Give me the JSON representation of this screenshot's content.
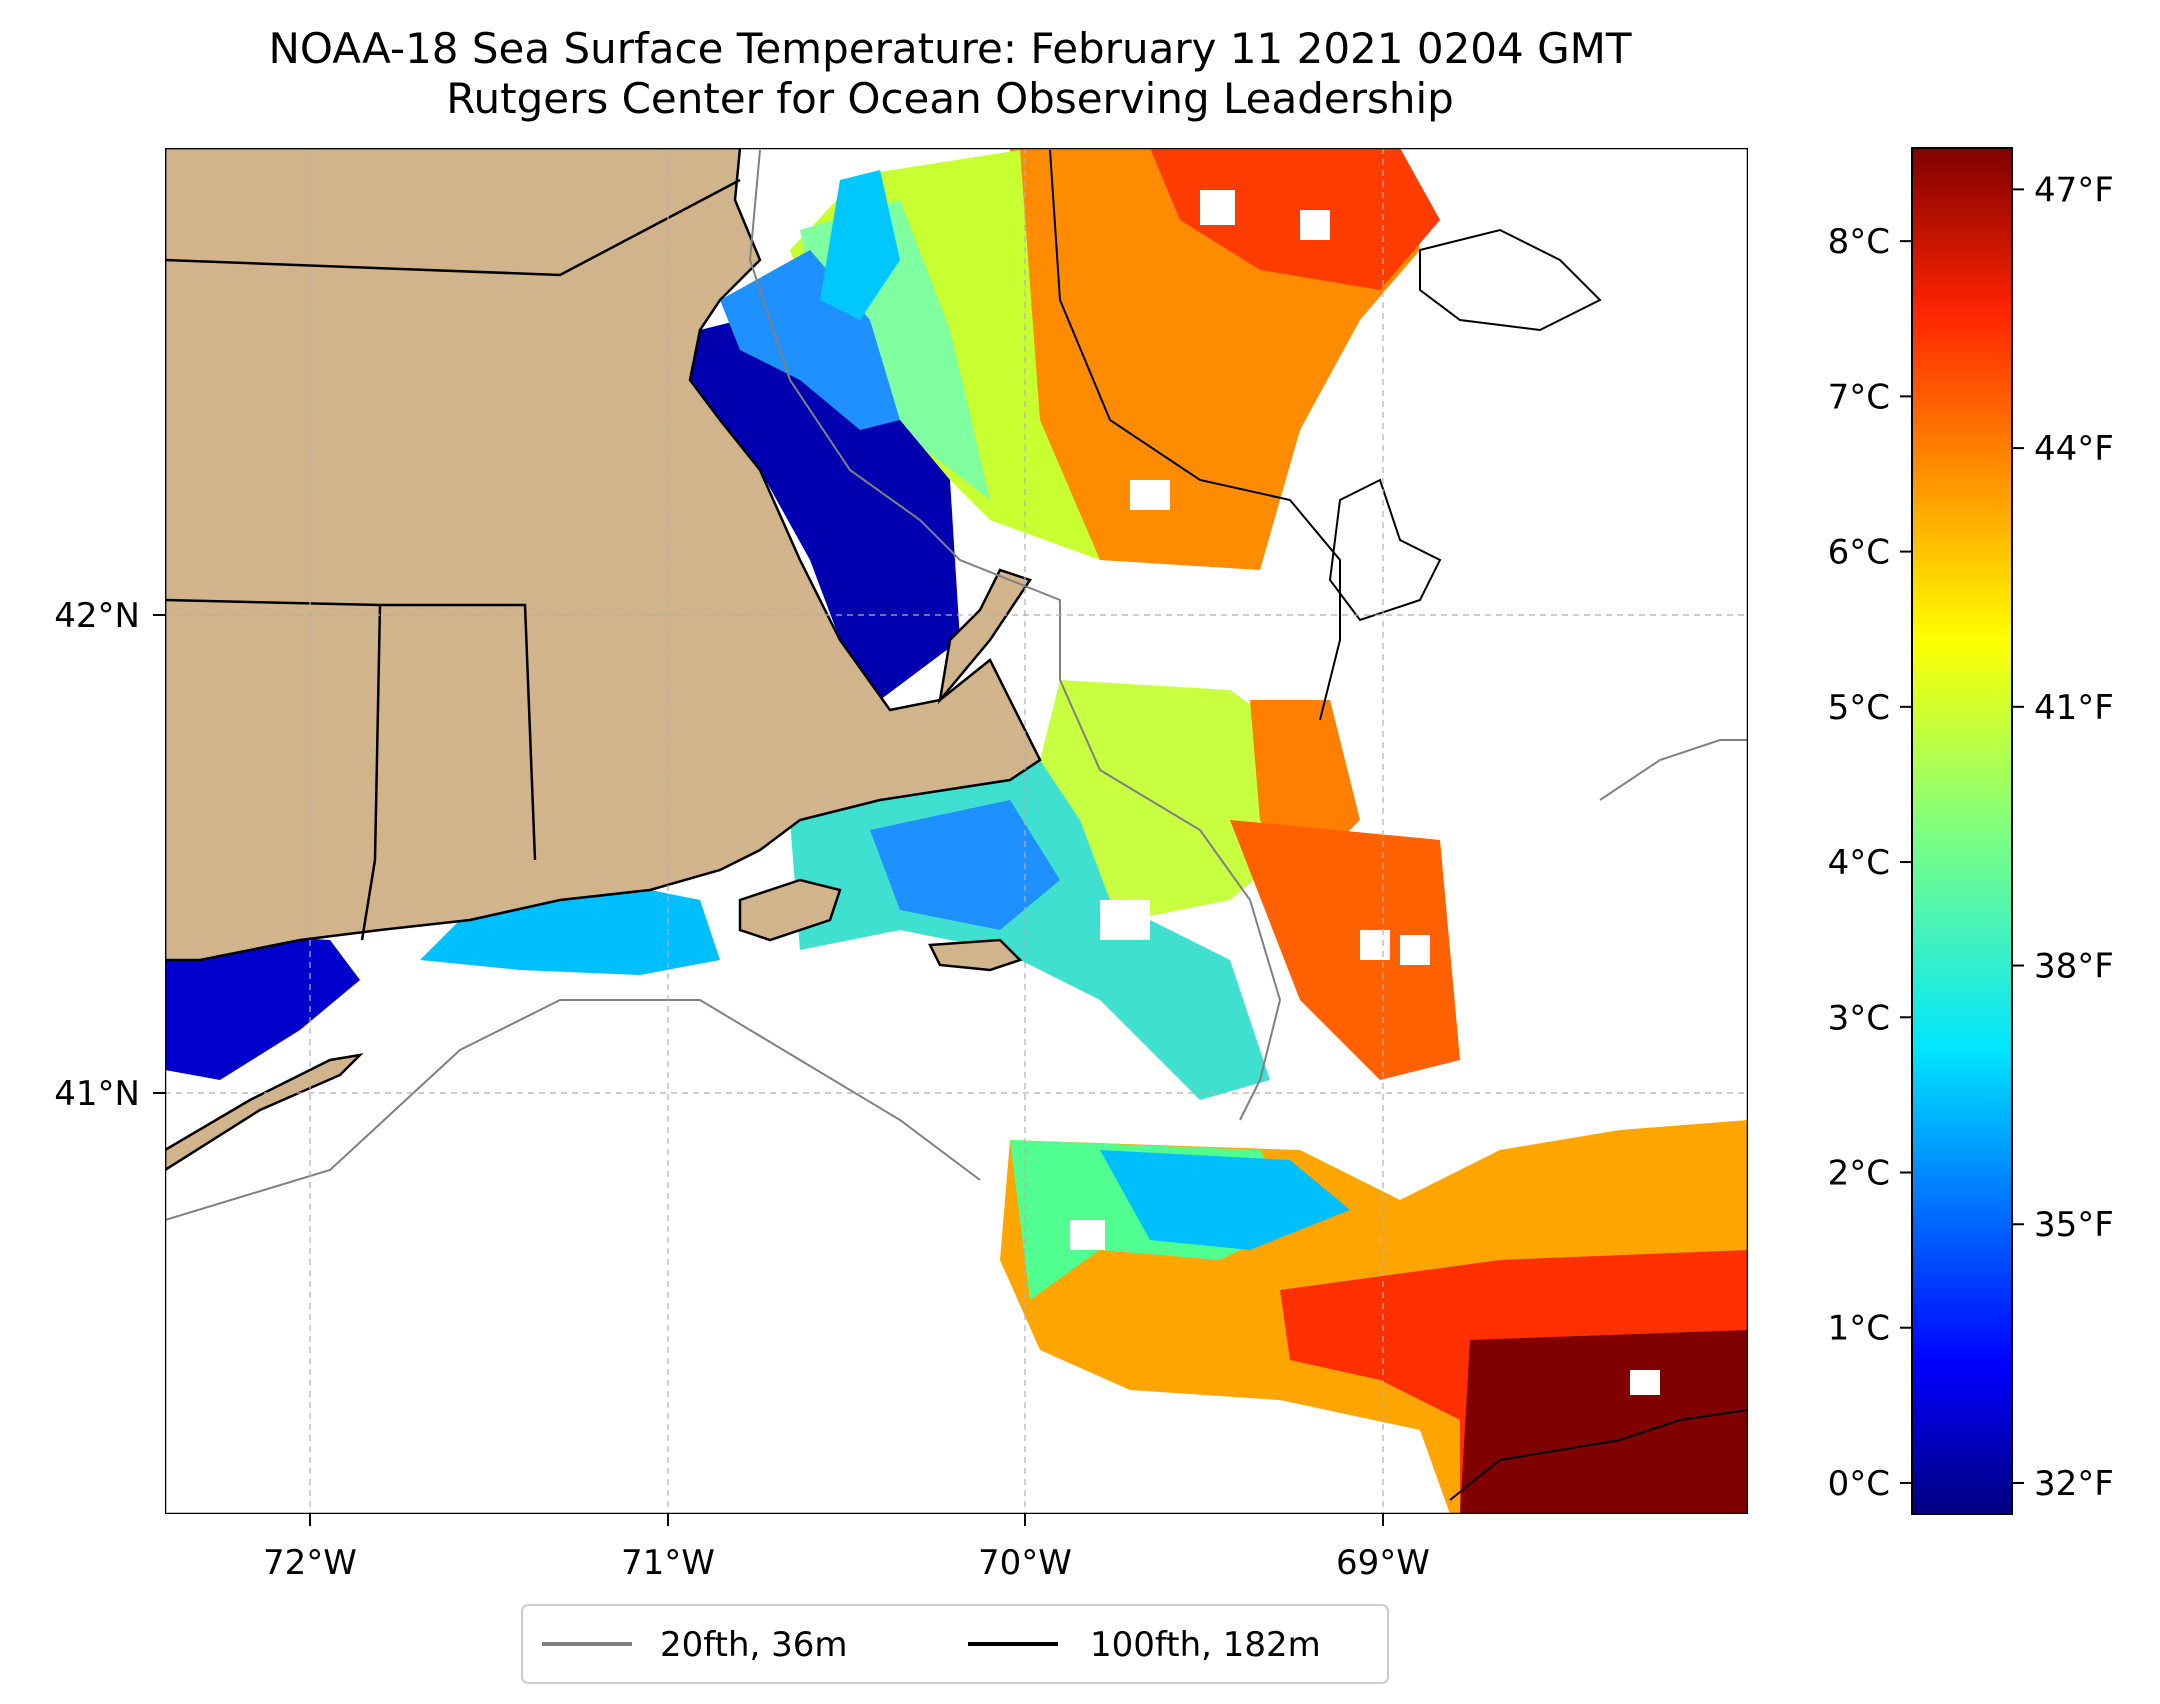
{
  "title": {
    "line1": "NOAA-18 Sea Surface Temperature: February 11 2021 0204 GMT",
    "line2": "Rutgers Center for Ocean Observing Leadership"
  },
  "map": {
    "x_ticks": [
      "72°W",
      "71°W",
      "70°W",
      "69°W"
    ],
    "y_ticks": [
      "42°N",
      "41°N"
    ],
    "land_color": "#d2b48c",
    "grid": true
  },
  "colorbar": {
    "colormap": "jet",
    "celsius_ticks": [
      "0°C",
      "1°C",
      "2°C",
      "3°C",
      "4°C",
      "5°C",
      "6°C",
      "7°C",
      "8°C"
    ],
    "fahrenheit_ticks": [
      "32°F",
      "35°F",
      "38°F",
      "41°F",
      "44°F",
      "47°F"
    ],
    "range_c": [
      -0.2,
      8.6
    ]
  },
  "legend": {
    "items": [
      {
        "label": "20fth, 36m",
        "color": "#808080"
      },
      {
        "label": "100fth, 182m",
        "color": "#000000"
      }
    ]
  }
}
